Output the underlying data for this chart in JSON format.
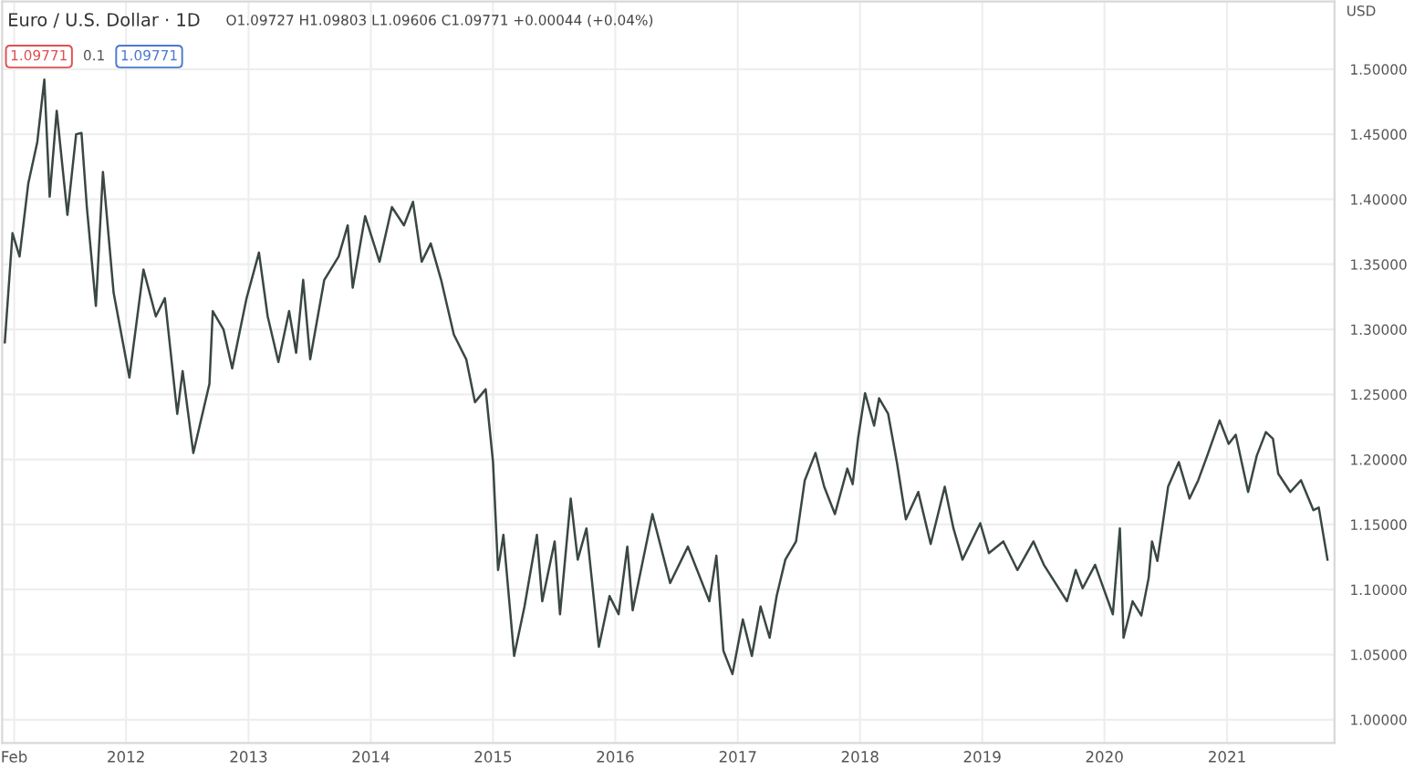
{
  "chart_data": {
    "type": "line",
    "title": "Euro / U.S. Dollar · 1D",
    "ylabel": "USD",
    "annotations": [
      "O1.09727 H1.09803 L1.09606 C1.09771 +0.00044 (+0.04%)",
      "1.09771",
      "0.1",
      "1.09771"
    ],
    "series": [
      {
        "color": "#3a4742",
        "x": [
          "2011-01-04",
          "2011-01-27",
          "2011-02-17",
          "2011-03-15",
          "2011-04-11",
          "2011-05-02",
          "2011-05-18",
          "2011-06-08",
          "2011-07-10",
          "2011-08-05",
          "2011-08-21",
          "2011-09-06",
          "2011-10-03",
          "2011-10-24",
          "2011-11-25",
          "2012-01-11",
          "2012-02-22",
          "2012-03-30",
          "2012-04-26",
          "2012-06-02",
          "2012-06-18",
          "2012-07-20",
          "2012-09-06",
          "2012-09-16",
          "2012-10-18",
          "2012-11-13",
          "2012-12-26",
          "2013-02-01",
          "2013-02-27",
          "2013-03-31",
          "2013-05-02",
          "2013-05-23",
          "2013-06-13",
          "2013-07-04",
          "2013-08-15",
          "2013-09-27",
          "2013-10-24",
          "2013-11-08",
          "2013-12-15",
          "2014-01-27",
          "2014-03-05",
          "2014-04-10",
          "2014-05-07",
          "2014-06-02",
          "2014-06-29",
          "2014-07-30",
          "2014-09-06",
          "2014-10-13",
          "2014-11-08",
          "2014-12-10",
          "2015-01-01",
          "2015-01-16",
          "2015-02-01",
          "2015-03-05",
          "2015-04-05",
          "2015-05-12",
          "2015-05-28",
          "2015-07-04",
          "2015-07-20",
          "2015-08-21",
          "2015-09-11",
          "2015-10-07",
          "2015-11-13",
          "2015-12-15",
          "2016-01-11",
          "2016-02-06",
          "2016-02-22",
          "2016-04-21",
          "2016-06-13",
          "2016-08-05",
          "2016-10-08",
          "2016-10-29",
          "2016-11-19",
          "2016-12-16",
          "2017-01-16",
          "2017-02-12",
          "2017-03-10",
          "2017-04-06",
          "2017-04-27",
          "2017-05-23",
          "2017-06-24",
          "2017-07-20",
          "2017-08-21",
          "2017-09-16",
          "2017-10-18",
          "2017-11-24",
          "2017-12-10",
          "2017-12-26",
          "2018-01-16",
          "2018-02-12",
          "2018-02-27",
          "2018-03-26",
          "2018-04-21",
          "2018-05-18",
          "2018-06-24",
          "2018-07-31",
          "2018-09-11",
          "2018-10-07",
          "2018-11-03",
          "2018-12-26",
          "2019-01-21",
          "2019-03-05",
          "2019-04-16",
          "2019-06-03",
          "2019-07-04",
          "2019-09-11",
          "2019-10-07",
          "2019-10-28",
          "2019-12-04",
          "2020-01-26",
          "2020-02-16",
          "2020-02-27",
          "2020-03-25",
          "2020-04-20",
          "2020-05-12",
          "2020-05-22",
          "2020-06-07",
          "2020-07-09",
          "2020-08-10",
          "2020-09-11",
          "2020-10-07",
          "2020-11-03",
          "2020-12-10",
          "2021-01-06",
          "2021-01-27",
          "2021-03-05",
          "2021-03-31",
          "2021-04-27",
          "2021-05-18",
          "2021-06-03",
          "2021-07-09",
          "2021-08-10",
          "2021-09-16",
          "2021-10-02",
          "2021-10-28"
        ],
        "values": [
          1.29,
          1.374,
          1.356,
          1.412,
          1.444,
          1.492,
          1.402,
          1.468,
          1.388,
          1.45,
          1.451,
          1.394,
          1.318,
          1.421,
          1.328,
          1.263,
          1.346,
          1.31,
          1.324,
          1.235,
          1.268,
          1.205,
          1.258,
          1.314,
          1.3,
          1.27,
          1.324,
          1.359,
          1.31,
          1.275,
          1.314,
          1.282,
          1.338,
          1.277,
          1.338,
          1.356,
          1.38,
          1.332,
          1.387,
          1.352,
          1.394,
          1.38,
          1.398,
          1.352,
          1.366,
          1.338,
          1.296,
          1.277,
          1.244,
          1.254,
          1.198,
          1.115,
          1.142,
          1.049,
          1.087,
          1.142,
          1.091,
          1.137,
          1.081,
          1.17,
          1.123,
          1.147,
          1.056,
          1.095,
          1.081,
          1.133,
          1.084,
          1.158,
          1.105,
          1.133,
          1.091,
          1.126,
          1.053,
          1.035,
          1.077,
          1.049,
          1.087,
          1.063,
          1.095,
          1.123,
          1.137,
          1.184,
          1.205,
          1.179,
          1.158,
          1.193,
          1.181,
          1.216,
          1.251,
          1.226,
          1.247,
          1.235,
          1.198,
          1.154,
          1.175,
          1.135,
          1.179,
          1.147,
          1.123,
          1.151,
          1.128,
          1.137,
          1.115,
          1.137,
          1.119,
          1.091,
          1.115,
          1.101,
          1.119,
          1.081,
          1.147,
          1.063,
          1.091,
          1.08,
          1.109,
          1.137,
          1.122,
          1.179,
          1.198,
          1.17,
          1.184,
          1.203,
          1.23,
          1.212,
          1.219,
          1.175,
          1.203,
          1.221,
          1.216,
          1.189,
          1.175,
          1.184,
          1.161,
          1.163,
          1.123
        ]
      }
    ],
    "xlim": [
      "2010-12-27",
      "2021-11-18"
    ],
    "xticks": [
      {
        "value": "2011-02-01",
        "label": "Feb"
      },
      {
        "value": "2012-01-01",
        "label": "2012"
      },
      {
        "value": "2013-01-01",
        "label": "2013"
      },
      {
        "value": "2014-01-01",
        "label": "2014"
      },
      {
        "value": "2015-01-01",
        "label": "2015"
      },
      {
        "value": "2016-01-01",
        "label": "2016"
      },
      {
        "value": "2017-01-01",
        "label": "2017"
      },
      {
        "value": "2018-01-01",
        "label": "2018"
      },
      {
        "value": "2019-01-01",
        "label": "2019"
      },
      {
        "value": "2020-01-01",
        "label": "2020"
      },
      {
        "value": "2021-01-01",
        "label": "2021"
      }
    ],
    "ylim": [
      0.982,
      1.552
    ],
    "yticks": [
      {
        "value": 1.0,
        "label": "1.00000"
      },
      {
        "value": 1.05,
        "label": "1.05000"
      },
      {
        "value": 1.1,
        "label": "1.10000"
      },
      {
        "value": 1.15,
        "label": "1.15000"
      },
      {
        "value": 1.2,
        "label": "1.20000"
      },
      {
        "value": 1.25,
        "label": "1.25000"
      },
      {
        "value": 1.3,
        "label": "1.30000"
      },
      {
        "value": 1.35,
        "label": "1.35000"
      },
      {
        "value": 1.4,
        "label": "1.40000"
      },
      {
        "value": 1.45,
        "label": "1.45000"
      },
      {
        "value": 1.5,
        "label": "1.50000"
      }
    ],
    "grid": true,
    "marker": "none",
    "line_style": "solid"
  }
}
